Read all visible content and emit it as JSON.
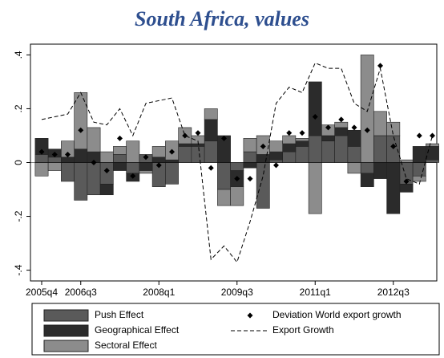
{
  "chart_data": {
    "type": "bar",
    "title": "South Africa, values",
    "categories": [
      "2005q4",
      null,
      null,
      "2006q3",
      null,
      null,
      null,
      null,
      null,
      "2008q1",
      null,
      null,
      null,
      null,
      null,
      "2009q3",
      null,
      null,
      null,
      null,
      null,
      "2011q1",
      null,
      null,
      null,
      null,
      null,
      "2012q3",
      null,
      null,
      null
    ],
    "stacked": true,
    "series": [
      {
        "name": "Push Effect",
        "type": "bar",
        "color": "#5a5a5a",
        "values": [
          0.03,
          0.02,
          -0.07,
          -0.14,
          -0.12,
          -0.08,
          0.03,
          -0.04,
          0.03,
          -0.09,
          -0.08,
          0.06,
          0.06,
          0.08,
          -0.1,
          -0.03,
          0.04,
          -0.17,
          0.01,
          0.04,
          0.06,
          0.1,
          0.08,
          0.1,
          0.06,
          -0.04,
          0.1,
          0.1,
          -0.08,
          -0.05,
          0.01
        ]
      },
      {
        "name": "Geographical Effect",
        "type": "bar",
        "color": "#2b2b2b",
        "values": [
          0.06,
          0.03,
          0.02,
          0.05,
          0.04,
          -0.04,
          -0.03,
          -0.03,
          -0.03,
          0.02,
          0.01,
          0.01,
          0.01,
          0.08,
          0.1,
          -0.06,
          -0.02,
          0.03,
          0.03,
          0.03,
          0.02,
          0.2,
          0.02,
          0.03,
          0.06,
          -0.05,
          -0.06,
          -0.19,
          -0.03,
          0.06,
          0.05
        ]
      },
      {
        "name": "Sectoral Effect",
        "type": "bar",
        "color": "#8c8c8c",
        "values": [
          -0.05,
          -0.03,
          0.06,
          0.21,
          0.09,
          0.04,
          0.03,
          0.08,
          -0.01,
          0.04,
          0.07,
          0.06,
          0.03,
          0.04,
          -0.06,
          -0.07,
          0.05,
          0.07,
          0.04,
          0.03,
          0.01,
          -0.19,
          0.04,
          0.02,
          -0.04,
          0.4,
          0.09,
          0.05,
          0.01,
          -0.02,
          0.01
        ]
      },
      {
        "name": "Deviation World export growth",
        "type": "scatter",
        "color": "#000000",
        "values": [
          0.04,
          0.03,
          0.03,
          0.12,
          0.0,
          -0.03,
          0.09,
          -0.05,
          0.02,
          -0.01,
          0.04,
          0.1,
          0.11,
          -0.02,
          0.09,
          -0.06,
          -0.06,
          0.06,
          -0.01,
          0.11,
          0.11,
          0.17,
          0.13,
          0.16,
          0.13,
          0.12,
          0.36,
          0.06,
          -0.07,
          0.1,
          0.1
        ]
      },
      {
        "name": "Export Growth",
        "type": "line",
        "dashed": true,
        "color": "#000000",
        "values": [
          0.16,
          0.17,
          0.18,
          0.26,
          0.15,
          0.14,
          0.2,
          0.1,
          0.22,
          0.23,
          0.24,
          0.1,
          0.08,
          -0.36,
          -0.31,
          -0.37,
          -0.22,
          -0.05,
          0.22,
          0.28,
          0.26,
          0.37,
          0.35,
          0.35,
          0.22,
          0.19,
          0.35,
          0.1,
          -0.06,
          -0.08,
          0.1
        ]
      }
    ],
    "ylim": [
      -0.44,
      0.44
    ],
    "yticks": [
      {
        "value": -0.4,
        "label": "-.4"
      },
      {
        "value": -0.2,
        "label": "-.2"
      },
      0,
      {
        "value": 0.2,
        "label": ".2"
      },
      {
        "value": 0.4,
        "label": ".4"
      }
    ],
    "grid": false,
    "legend": "bottom"
  }
}
